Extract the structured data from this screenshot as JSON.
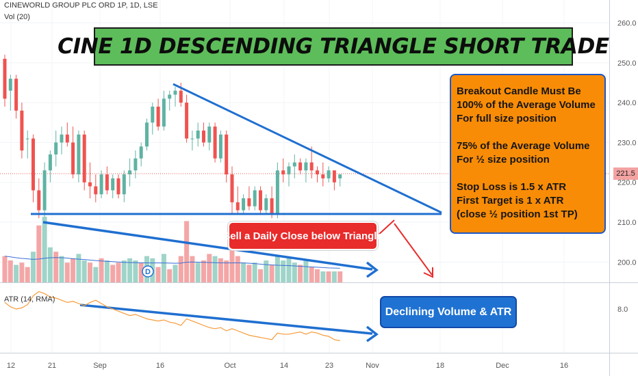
{
  "header": {
    "symbol_line": "CINEWORLD GROUP PLC ORD 1P, 1D, LSE",
    "volume_label": "Vol (20)",
    "atr_label": "ATR (14, RMA)"
  },
  "title": "CINE 1D DESCENDING TRIANGLE SHORT TRADE",
  "info_box": {
    "lines_a": [
      "Breakout Candle Must Be",
      "100% of the Average Volume",
      "For full size position"
    ],
    "lines_b": [
      "75% of the Average Volume",
      "For ½ size position"
    ],
    "lines_c": [
      "Stop Loss is 1.5 x ATR",
      "First Target is 1 x ATR",
      "(close ½ position 1st TP)"
    ]
  },
  "sell_label": "Sell a Daily Close below Triangle",
  "declining_label": "Declining Volume & ATR",
  "current_price": "221.5",
  "dividend_marker": "D",
  "colors": {
    "up": "#5fb3a3",
    "down": "#ef5350",
    "line": "#1f6fd0",
    "banner": "#5dbd5a",
    "info": "#f98c06",
    "sell": "#e82b2b"
  },
  "chart_data": [
    {
      "type": "candlestick",
      "y_axis_ticks": [
        "200.0",
        "210.0",
        "220.0",
        "230.0",
        "240.0",
        "250.0",
        "260.0"
      ],
      "ylim": [
        193,
        265
      ],
      "x_ticks": [
        "12",
        "21",
        "Sep",
        "16",
        "Oct",
        "14",
        "23",
        "Nov",
        "18",
        "Dec",
        "16"
      ],
      "ohlc": [
        [
          251,
          252,
          239,
          241
        ],
        [
          243,
          247,
          238,
          246
        ],
        [
          246,
          247,
          236,
          238
        ],
        [
          238,
          240,
          226,
          228
        ],
        [
          231,
          233,
          226,
          231
        ],
        [
          231,
          232,
          215,
          218
        ],
        [
          218,
          221,
          211,
          213
        ],
        [
          213,
          225,
          211,
          223
        ],
        [
          223,
          228,
          220,
          227
        ],
        [
          227,
          233,
          224,
          230
        ],
        [
          230,
          234,
          227,
          232
        ],
        [
          232,
          235,
          229,
          230
        ],
        [
          230,
          234,
          221,
          222
        ],
        [
          222,
          233,
          220,
          232
        ],
        [
          232,
          233,
          218,
          220
        ],
        [
          220,
          225,
          216,
          219
        ],
        [
          219,
          222,
          215,
          217
        ],
        [
          217,
          223,
          216,
          222
        ],
        [
          222,
          224,
          217,
          218
        ],
        [
          218,
          222,
          216,
          221
        ],
        [
          221,
          222,
          216,
          217
        ],
        [
          217,
          223,
          215,
          222
        ],
        [
          222,
          226,
          219,
          223
        ],
        [
          223,
          228,
          221,
          226
        ],
        [
          226,
          230,
          224,
          229
        ],
        [
          229,
          236,
          228,
          235
        ],
        [
          235,
          240,
          232,
          239
        ],
        [
          239,
          241,
          233,
          234
        ],
        [
          234,
          243,
          233,
          241
        ],
        [
          241,
          243,
          238,
          242
        ],
        [
          242,
          244,
          239,
          243
        ],
        [
          243,
          245,
          239,
          240
        ],
        [
          240,
          242,
          230,
          231
        ],
        [
          231,
          233,
          228,
          231
        ],
        [
          231,
          235,
          229,
          233
        ],
        [
          233,
          235,
          229,
          230
        ],
        [
          230,
          235,
          228,
          234
        ],
        [
          234,
          235,
          225,
          226
        ],
        [
          226,
          233,
          225,
          232
        ],
        [
          232,
          233,
          220,
          222
        ],
        [
          222,
          224,
          212,
          215
        ],
        [
          215,
          219,
          212,
          213
        ],
        [
          213,
          217,
          212,
          216
        ],
        [
          216,
          219,
          213,
          214
        ],
        [
          214,
          219,
          213,
          218
        ],
        [
          218,
          219,
          212,
          213
        ],
        [
          213,
          217,
          212,
          216
        ],
        [
          216,
          219,
          211,
          212
        ],
        [
          212,
          225,
          211,
          223
        ],
        [
          223,
          226,
          220,
          222
        ],
        [
          222,
          225,
          219,
          224
        ],
        [
          224,
          227,
          221,
          225
        ],
        [
          225,
          226,
          222,
          223
        ],
        [
          223,
          226,
          220,
          225
        ],
        [
          225,
          229,
          221,
          223
        ],
        [
          223,
          224,
          220,
          222
        ],
        [
          222,
          225,
          219,
          221
        ],
        [
          221,
          224,
          220,
          223
        ],
        [
          223,
          223,
          218,
          220
        ],
        [
          221,
          222,
          219,
          222
        ]
      ],
      "volume": [
        [
          12,
          0
        ],
        [
          10,
          0
        ],
        [
          8,
          1
        ],
        [
          9,
          0
        ],
        [
          7,
          0
        ],
        [
          14,
          1
        ],
        [
          26,
          0
        ],
        [
          30,
          1
        ],
        [
          16,
          1
        ],
        [
          14,
          0
        ],
        [
          12,
          1
        ],
        [
          9,
          0
        ],
        [
          11,
          0
        ],
        [
          13,
          1
        ],
        [
          10,
          1
        ],
        [
          9,
          0
        ],
        [
          7,
          1
        ],
        [
          11,
          0
        ],
        [
          10,
          1
        ],
        [
          8,
          0
        ],
        [
          9,
          0
        ],
        [
          10,
          1
        ],
        [
          11,
          1
        ],
        [
          10,
          1
        ],
        [
          9,
          0
        ],
        [
          12,
          1
        ],
        [
          11,
          1
        ],
        [
          7,
          0
        ],
        [
          13,
          1
        ],
        [
          6,
          0
        ],
        [
          8,
          1
        ],
        [
          12,
          0
        ],
        [
          28,
          0
        ],
        [
          12,
          0
        ],
        [
          9,
          1
        ],
        [
          10,
          0
        ],
        [
          13,
          0
        ],
        [
          12,
          1
        ],
        [
          11,
          0
        ],
        [
          10,
          0
        ],
        [
          16,
          0
        ],
        [
          12,
          0
        ],
        [
          9,
          1
        ],
        [
          8,
          0
        ],
        [
          9,
          1
        ],
        [
          6,
          0
        ],
        [
          10,
          1
        ],
        [
          8,
          0
        ],
        [
          12,
          1
        ],
        [
          10,
          1
        ],
        [
          11,
          1
        ],
        [
          9,
          1
        ],
        [
          8,
          0
        ],
        [
          10,
          1
        ],
        [
          7,
          0
        ],
        [
          6,
          0
        ],
        [
          5,
          1
        ],
        [
          5,
          0
        ],
        [
          5,
          1
        ],
        [
          5,
          0
        ]
      ],
      "volume_ma": [
        16,
        15.5,
        15,
        14.6,
        14.3,
        14,
        14.2,
        14.7,
        15,
        15.1,
        15,
        14.8,
        14.4,
        14.1,
        13.9,
        13.6,
        13.3,
        13,
        12.8,
        12.6,
        12.4,
        12.2,
        12.1,
        12,
        11.9,
        11.9,
        11.8,
        11.8,
        11.8,
        11.7,
        11.6,
        11.7,
        12.3,
        12.4,
        12.3,
        12.2,
        12.1,
        12,
        11.9,
        11.8,
        11.9,
        11.9,
        11.8,
        11.6,
        11.4,
        11.1,
        10.8,
        10.6,
        10.4,
        10.3,
        10.2,
        10,
        9.8,
        9.6,
        9.4,
        9.2,
        9,
        8.8,
        8.7,
        8.6
      ],
      "atr": [
        8.3,
        8.1,
        8.0,
        8.05,
        8.2,
        8.6,
        8.8,
        8.7,
        8.55,
        8.5,
        8.4,
        8.3,
        8.35,
        8.25,
        8.15,
        8.3,
        8.4,
        8.25,
        8.1,
        8.0,
        7.9,
        7.8,
        7.7,
        7.75,
        7.65,
        7.55,
        7.5,
        7.45,
        7.5,
        7.4,
        7.35,
        7.25,
        7.55,
        7.45,
        7.35,
        7.25,
        7.15,
        7.1,
        7.15,
        7.0,
        7.1,
        7.0,
        6.9,
        6.8,
        6.75,
        6.7,
        6.65,
        6.6,
        6.9,
        6.85,
        6.85,
        6.9,
        6.95,
        6.85,
        6.95,
        6.9,
        6.8,
        6.75,
        6.6,
        6.55
      ],
      "atr_ticks": [
        "8.0"
      ]
    }
  ]
}
